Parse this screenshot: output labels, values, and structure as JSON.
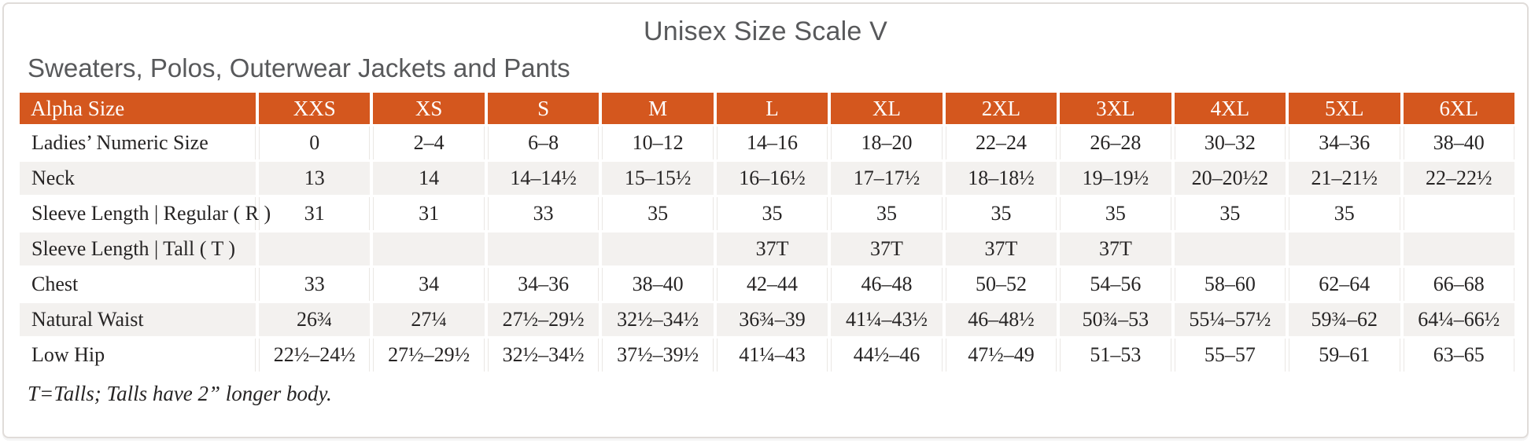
{
  "title": "Unisex Size Scale V",
  "subtitle": "Sweaters, Polos, Outerwear Jackets and Pants",
  "footnote": "T=Talls; Talls have 2” longer body.",
  "colors": {
    "accent_orange": "#d4571e",
    "row_stripe": "#f3f1ef",
    "title_gray": "#58595b"
  },
  "table": {
    "header": [
      "Alpha Size",
      "XXS",
      "XS",
      "S",
      "M",
      "L",
      "XL",
      "2XL",
      "3XL",
      "4XL",
      "5XL",
      "6XL"
    ],
    "rows": [
      {
        "label": "Ladies’ Numeric Size",
        "values": [
          "0",
          "2–4",
          "6–8",
          "10–12",
          "14–16",
          "18–20",
          "22–24",
          "26–28",
          "30–32",
          "34–36",
          "38–40"
        ]
      },
      {
        "label": "Neck",
        "values": [
          "13",
          "14",
          "14–14½",
          "15–15½",
          "16–16½",
          "17–17½",
          "18–18½",
          "19–19½",
          "20–20½2",
          "21–21½",
          "22–22½"
        ]
      },
      {
        "label": "Sleeve Length | Regular ( R )",
        "values": [
          "31",
          "31",
          "33",
          "35",
          "35",
          "35",
          "35",
          "35",
          "35",
          "35",
          ""
        ]
      },
      {
        "label": "Sleeve Length | Tall ( T )",
        "values": [
          "",
          "",
          "",
          "",
          "37T",
          "37T",
          "37T",
          "37T",
          "",
          "",
          ""
        ]
      },
      {
        "label": "Chest",
        "values": [
          "33",
          "34",
          "34–36",
          "38–40",
          "42–44",
          "46–48",
          "50–52",
          "54–56",
          "58–60",
          "62–64",
          "66–68"
        ]
      },
      {
        "label": "Natural Waist",
        "values": [
          "26¾",
          "27¼",
          "27½–29½",
          "32½–34½",
          "36¾–39",
          "41¼–43½",
          "46–48½",
          "50¾–53",
          "55¼–57½",
          "59¾–62",
          "64¼–66½"
        ]
      },
      {
        "label": "Low Hip",
        "values": [
          "22½–24½",
          "27½–29½",
          "32½–34½",
          "37½–39½",
          "41¼–43",
          "44½–46",
          "47½–49",
          "51–53",
          "55–57",
          "59–61",
          "63–65"
        ]
      }
    ]
  }
}
